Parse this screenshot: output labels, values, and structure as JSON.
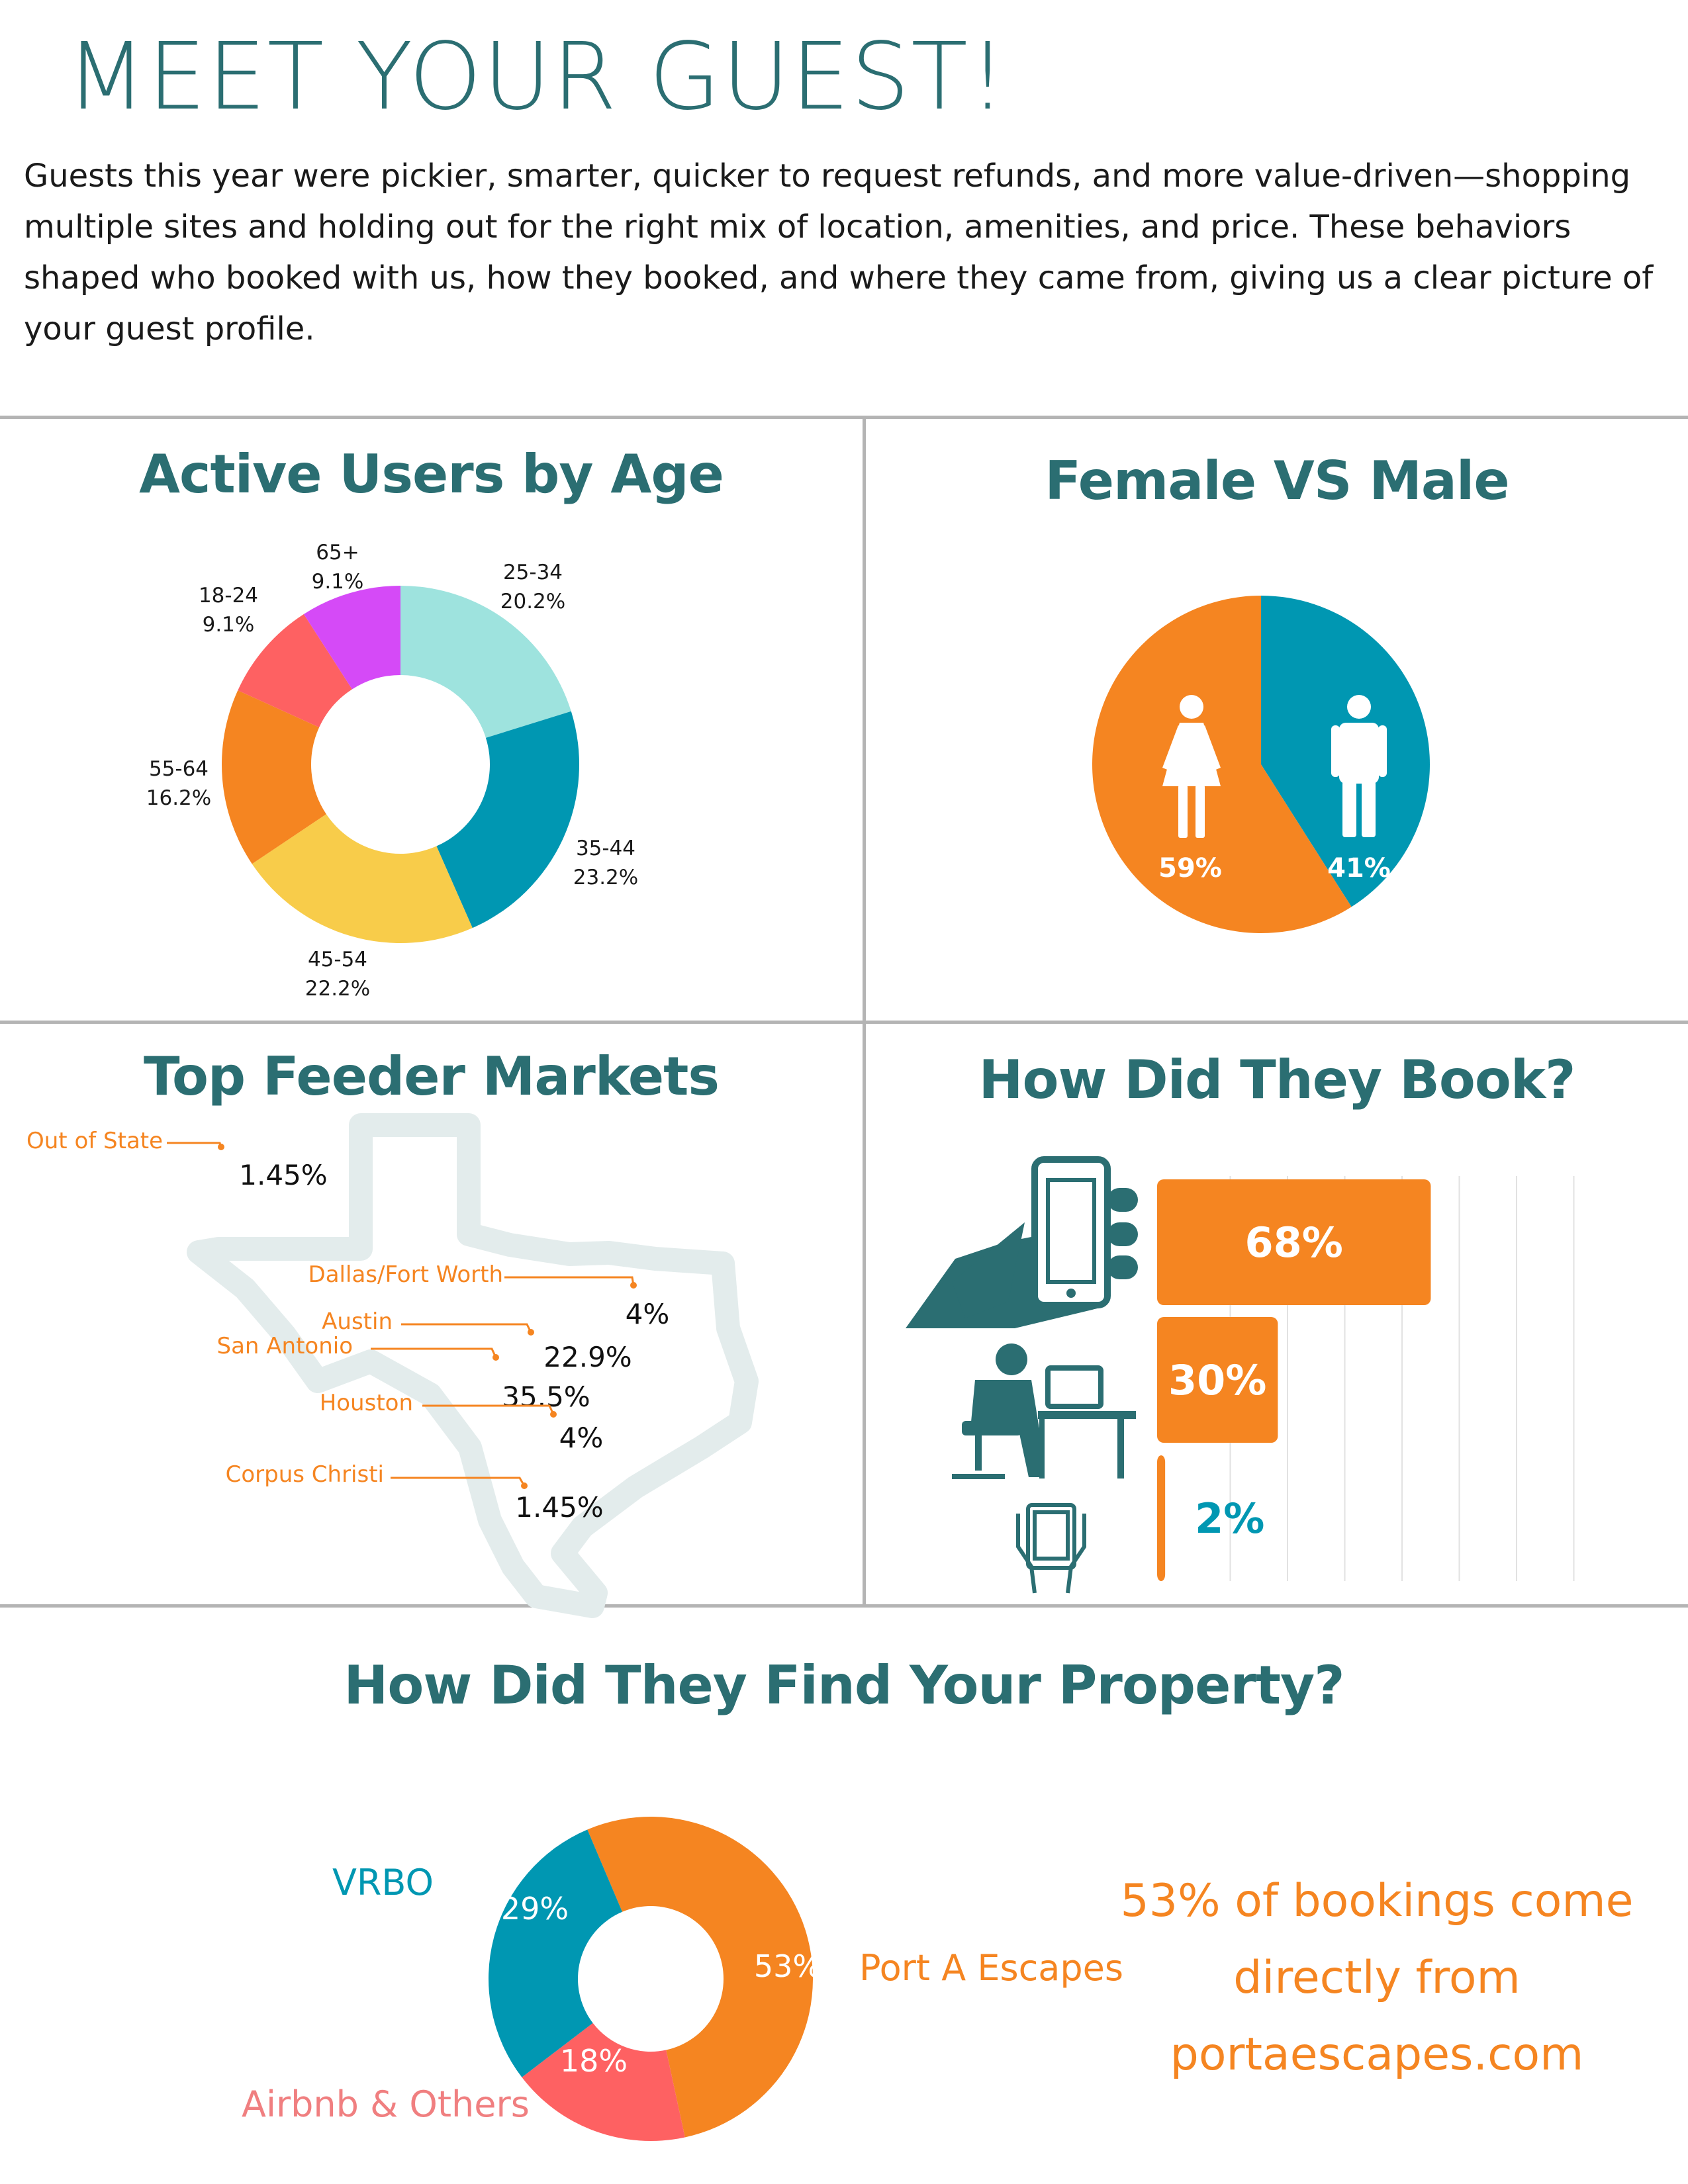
{
  "header": {
    "title": "MEET YOUR GUEST!",
    "intro": "Guests this year were pickier, smarter, quicker to request refunds, and more value-driven—shopping multiple sites and holding out for the right mix of location, amenities, and price. These behaviors shaped who booked with us, how they booked, and where they came from, giving us a clear picture of your guest profile."
  },
  "colors": {
    "title_teal": "#2b6e72",
    "orange": "#f58521",
    "blue": "#0097b2",
    "light_teal": "#9ee3de",
    "yellow": "#f8cc4a",
    "coral": "#fe6162",
    "purple": "#d54af7",
    "divider": "#b4b4b4"
  },
  "chart_data": [
    {
      "id": "age",
      "type": "pie",
      "donut": true,
      "title": "Active Users by Age",
      "slices": [
        {
          "label": "25-34",
          "value": 20.2,
          "display": "20.2%",
          "color": "#9ee3de"
        },
        {
          "label": "35-44",
          "value": 23.2,
          "display": "23.2%",
          "color": "#0097b2"
        },
        {
          "label": "45-54",
          "value": 22.2,
          "display": "22.2%",
          "color": "#f8cc4a"
        },
        {
          "label": "55-64",
          "value": 16.2,
          "display": "16.2%",
          "color": "#f58521"
        },
        {
          "label": "18-24",
          "value": 9.1,
          "display": "9.1%",
          "color": "#fe6162"
        },
        {
          "label": "65+",
          "value": 9.1,
          "display": "9.1%",
          "color": "#d54af7"
        }
      ]
    },
    {
      "id": "gender",
      "type": "pie",
      "title": "Female VS Male",
      "slices": [
        {
          "label": "Male",
          "value": 41,
          "display": "41%",
          "color": "#0097b2",
          "icon": "male-icon"
        },
        {
          "label": "Female",
          "value": 59,
          "display": "59%",
          "color": "#f58521",
          "icon": "female-icon"
        }
      ]
    },
    {
      "id": "markets",
      "type": "table",
      "title": "Top Feeder Markets",
      "rows": [
        {
          "label": "Out of State",
          "display": "1.45%",
          "value": 1.45
        },
        {
          "label": "Dallas/Fort Worth",
          "display": "4%",
          "value": 4
        },
        {
          "label": "Austin",
          "display": "22.9%",
          "value": 22.9
        },
        {
          "label": "San Antonio",
          "display": "35.5%",
          "value": 35.5
        },
        {
          "label": "Houston",
          "display": "4%",
          "value": 4
        },
        {
          "label": "Corpus Christi",
          "display": "1.45%",
          "value": 1.45
        }
      ]
    },
    {
      "id": "booking",
      "type": "bar",
      "orientation": "horizontal",
      "title": "How Did They Book?",
      "xlim": [
        0,
        100
      ],
      "grid": true,
      "bars": [
        {
          "value": 68,
          "display": "68%",
          "icon": "smartphone-hand-icon"
        },
        {
          "value": 30,
          "display": "30%",
          "icon": "desktop-user-icon"
        },
        {
          "value": 2,
          "display": "2%",
          "icon": "tablet-hands-icon"
        }
      ]
    },
    {
      "id": "source",
      "type": "pie",
      "donut": true,
      "title": "How Did They Find Your Property?",
      "slices": [
        {
          "label": "Port A Escapes",
          "value": 53,
          "display": "53%",
          "color": "#f58521"
        },
        {
          "label": "Airbnb & Others",
          "value": 18,
          "display": "18%",
          "color": "#fe6162"
        },
        {
          "label": "VRBO",
          "value": 29,
          "display": "29%",
          "color": "#0097b2"
        }
      ]
    }
  ],
  "promo": {
    "lines": [
      "53% of bookings come",
      "directly from",
      "portaescapes.com"
    ]
  }
}
